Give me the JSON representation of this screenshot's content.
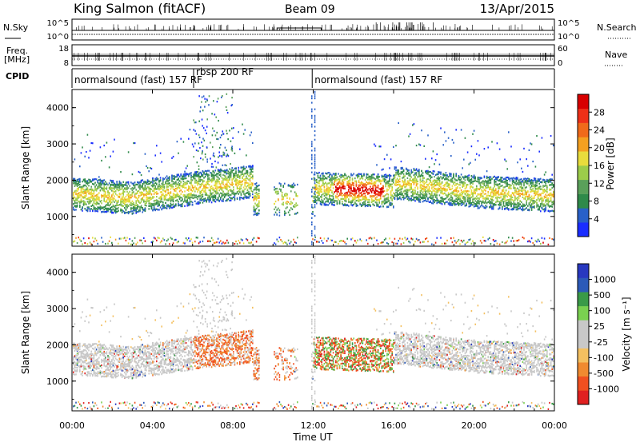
{
  "header": {
    "station": "King Salmon (fitACF)",
    "beam": "Beam 09",
    "date": "13/Apr/2015"
  },
  "left_labels": {
    "nsky": "N.Sky",
    "freq_line1": "Freq.",
    "freq_line2": "[MHz]",
    "cpid": "CPID"
  },
  "right_labels": {
    "nsearch": "N.Search",
    "nave": "Nave"
  },
  "noise_axes": {
    "left_ticks": [
      "10^5",
      "10^0"
    ],
    "right_ticks": [
      "10^5",
      "10^0"
    ]
  },
  "freq_axes": {
    "left_ticks": [
      "18",
      "8"
    ],
    "right_ticks": [
      "60",
      "0"
    ]
  },
  "cpid_segments": [
    {
      "label": "normalsound (fast) 157 RF",
      "start_hour": 0.0,
      "end_hour": 6.05
    },
    {
      "label": "rbsp 200 RF",
      "start_hour": 6.05,
      "end_hour": 11.95
    },
    {
      "label": "normalsound (fast) 157 RF",
      "start_hour": 11.95,
      "end_hour": 24.0
    }
  ],
  "colors": {
    "power_scale": [
      "#1a2dff",
      "#2860c8",
      "#2f8a4a",
      "#5aa05a",
      "#9ccc4a",
      "#e8dc3c",
      "#f4a020",
      "#f06a1a",
      "#ee3018",
      "#d80000"
    ],
    "velocity_scale": [
      "#e02020",
      "#f05020",
      "#f08a30",
      "#f4c060",
      "#c8c8c8",
      "#c8c8c8",
      "#7ad050",
      "#3a9a48",
      "#2c5ab8",
      "#2838c0"
    ]
  },
  "chart_data": [
    {
      "type": "heatmap",
      "name": "power",
      "ylabel": "Slant Range [km]",
      "colorbar_label": "Power [dB]",
      "colorbar_ticks": [
        "28",
        "24",
        "20",
        "16",
        "12",
        "8",
        "4"
      ],
      "y_ticks": [
        "4000",
        "3000",
        "2000",
        "1000"
      ],
      "ylim": [
        180,
        4500
      ],
      "xlim": [
        0,
        24
      ]
    },
    {
      "type": "heatmap",
      "name": "velocity",
      "ylabel": "Slant Range [km]",
      "colorbar_label": "Velocity [m s⁻¹]",
      "colorbar_ticks": [
        "1000",
        "500",
        "100",
        "25",
        "-25",
        "-100",
        "-500",
        "-1000"
      ],
      "y_ticks": [
        "4000",
        "3000",
        "2000",
        "1000"
      ],
      "ylim": [
        180,
        4500
      ],
      "xlim": [
        0,
        24
      ],
      "xlabel": "Time UT",
      "x_ticks": [
        "00:00",
        "04:00",
        "08:00",
        "12:00",
        "16:00",
        "20:00",
        "00:00"
      ]
    }
  ]
}
